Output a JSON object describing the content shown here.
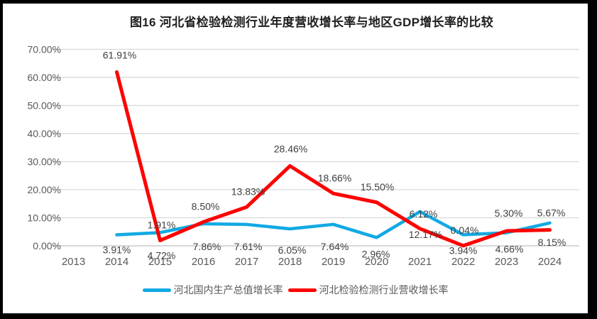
{
  "window": {
    "background_color": "#000000",
    "card_color": "#FFFFFF"
  },
  "chart_data": {
    "type": "line",
    "title": "图16 河北省检验检测行业年度营收增长率与地区GDP增长率的比较",
    "categories": [
      "2013",
      "2014",
      "2015",
      "2016",
      "2017",
      "2018",
      "2019",
      "2020",
      "2021",
      "2022",
      "2023",
      "2024"
    ],
    "series": [
      {
        "name": "河北国内生产总值增长率",
        "color": "#12A9E4",
        "values": [
          null,
          3.91,
          4.72,
          7.86,
          7.61,
          6.05,
          7.64,
          2.96,
          12.17,
          3.94,
          4.66,
          8.15
        ],
        "labels": [
          null,
          "3.91%",
          "4.72%",
          "7.86%",
          "7.61%",
          "6.05%",
          "7.64%",
          "2.96%",
          "12.17%",
          "3.94%",
          "4.66%",
          "8.15%"
        ],
        "label_position": "below"
      },
      {
        "name": "河北检验检测行业营收增长率",
        "color": "#FF0000",
        "values": [
          null,
          61.91,
          1.91,
          8.5,
          13.83,
          28.46,
          18.66,
          15.5,
          6.12,
          0.04,
          5.3,
          5.67
        ],
        "labels": [
          null,
          "61.91%",
          "1.91%",
          "8.50%",
          "13.83%",
          "28.46%",
          "18.66%",
          "15.50%",
          "6.12%",
          "0.04%",
          "5.30%",
          "5.67%"
        ],
        "label_position": "above"
      }
    ],
    "y_axis": {
      "min": 0,
      "max": 70,
      "step": 10,
      "tick_labels": [
        "0.00%",
        "10.00%",
        "20.00%",
        "30.00%",
        "40.00%",
        "50.00%",
        "60.00%",
        "70.00%"
      ]
    },
    "grid": true,
    "legend_position": "bottom",
    "colors": {
      "gridline": "#D9D9D9",
      "axis_line": "#BFBFBF",
      "axis_text": "#595959",
      "data_label_text": "#3F3F3F",
      "title_text": "#1F1F1F"
    }
  }
}
